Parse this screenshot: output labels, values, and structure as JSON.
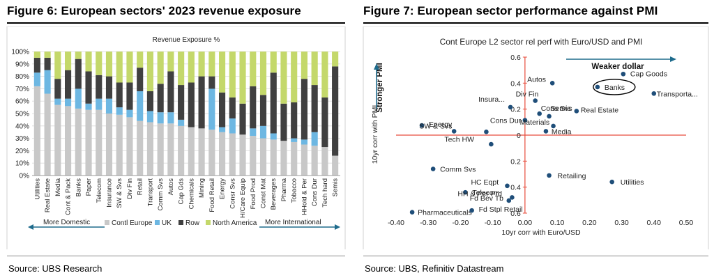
{
  "figure6": {
    "title": "Figure 6: European sectors' 2023 revenue exposure",
    "source": "Source: UBS Research"
  },
  "figure7": {
    "title": "Figure 7: European sector performance against PMI",
    "source": "Source: UBS, Refinitiv Datastream"
  },
  "chart_data": [
    {
      "type": "bar",
      "stacked": true,
      "title": "Revenue Exposure %",
      "xlabel": "",
      "ylabel": "",
      "ylim": [
        0,
        100
      ],
      "yticks": [
        "0%",
        "10%",
        "20%",
        "30%",
        "40%",
        "50%",
        "60%",
        "70%",
        "80%",
        "90%",
        "100%"
      ],
      "grid": true,
      "legend_position": "bottom",
      "annotations": [
        "More Domestic",
        "More International"
      ],
      "categories": [
        "Utilities",
        "Real Estate",
        "Media",
        "Cont & Pack",
        "Banks",
        "Paper",
        "Telecom",
        "Insurance",
        "SW & Svs",
        "Div Fin",
        "Retail",
        "Transport",
        "Comm Svs",
        "Autos",
        "Cap Gds",
        "Chemicals",
        "Mining",
        "Food Retail",
        "Energy",
        "Consr Svs",
        "H/Care Equip",
        "Food Prod",
        "Const Mat",
        "Beverages",
        "Pharma",
        "Tobacco",
        "HHold & Per",
        "Cons Dur",
        "Tech hard",
        "Semis"
      ],
      "series": [
        {
          "name": "Contl Europe",
          "color": "#c8c8c8",
          "values": [
            72,
            66,
            57,
            56,
            54,
            53,
            53,
            50,
            49,
            47,
            44,
            43,
            42,
            42,
            40,
            39,
            38,
            37,
            35,
            34,
            33,
            32,
            30,
            29,
            28,
            27,
            25,
            24,
            23,
            16
          ]
        },
        {
          "name": "UK",
          "color": "#6db7e2",
          "values": [
            11,
            19,
            5,
            6,
            16,
            5,
            9,
            12,
            6,
            6,
            24,
            9,
            9,
            9,
            5,
            0,
            0,
            33,
            4,
            12,
            0,
            6,
            10,
            5,
            0,
            3,
            4,
            11,
            0,
            0
          ]
        },
        {
          "name": "Row",
          "color": "#404040",
          "values": [
            12,
            10,
            16,
            23,
            24,
            26,
            19,
            18,
            20,
            22,
            19,
            16,
            23,
            33,
            28,
            36,
            42,
            10,
            28,
            17,
            25,
            34,
            25,
            49,
            30,
            29,
            49,
            38,
            40,
            72
          ]
        },
        {
          "name": "North America",
          "color": "#c4d86b",
          "values": [
            5,
            5,
            22,
            15,
            6,
            16,
            19,
            20,
            25,
            25,
            13,
            32,
            26,
            16,
            27,
            25,
            20,
            20,
            33,
            37,
            42,
            28,
            35,
            17,
            42,
            41,
            22,
            27,
            37,
            12
          ]
        }
      ]
    },
    {
      "type": "scatter",
      "title": "Cont Europe L2 sector rel perf with  Euro/USD and PMI",
      "xlabel": "10yr corr with Euro/USD",
      "ylabel": "10yr corr with PMI",
      "ylabel_emphasis": "Stronger PMI",
      "x_emphasis": "Weaker dollar",
      "xlim": [
        -0.4,
        0.5
      ],
      "ylim": [
        -0.6,
        0.6
      ],
      "xticks": [
        "-0.40",
        "-0.30",
        "-0.20",
        "-0.10",
        "0.00",
        "0.10",
        "0.20",
        "0.30",
        "0.40",
        "0.50"
      ],
      "yticks": [
        "0.6",
        "0.4",
        "0.2",
        "0",
        "0.2",
        "0.4",
        "0.6"
      ],
      "point_color": "#1f4e79",
      "highlight": "Banks",
      "points": [
        {
          "label": "Autos",
          "x": 0.085,
          "y": 0.4
        },
        {
          "label": "Cap Goods",
          "x": 0.305,
          "y": 0.47
        },
        {
          "label": "Banks",
          "x": 0.225,
          "y": 0.37
        },
        {
          "label": "Transporta...",
          "x": 0.4,
          "y": 0.32
        },
        {
          "label": "Div Fin",
          "x": 0.032,
          "y": 0.265
        },
        {
          "label": "Insura...",
          "x": -0.045,
          "y": 0.215
        },
        {
          "label": "Cons Svs",
          "x": 0.045,
          "y": 0.165
        },
        {
          "label": "Semis",
          "x": 0.075,
          "y": 0.145
        },
        {
          "label": "Real Estate",
          "x": 0.16,
          "y": 0.185
        },
        {
          "label": "Cons Dur",
          "x": 0.0,
          "y": 0.115
        },
        {
          "label": "Materials",
          "x": 0.088,
          "y": 0.07
        },
        {
          "label": "Media",
          "x": 0.065,
          "y": 0.03
        },
        {
          "label": "Energy",
          "x": -0.32,
          "y": 0.075
        },
        {
          "label": "SW & Svs",
          "x": -0.22,
          "y": 0.03
        },
        {
          "label": "Tech HW",
          "x": -0.12,
          "y": 0.025
        },
        {
          "label": "Tech HW",
          "x": -0.105,
          "y": -0.07
        },
        {
          "label": "Comm Svs",
          "x": -0.285,
          "y": -0.26
        },
        {
          "label": "HC Eqpt",
          "x": -0.055,
          "y": -0.39
        },
        {
          "label": "Telecom",
          "x": -0.185,
          "y": -0.44
        },
        {
          "label": "Retailing",
          "x": 0.075,
          "y": -0.31
        },
        {
          "label": "Utilities",
          "x": 0.27,
          "y": -0.36
        },
        {
          "label": "HH & Per Prd",
          "x": -0.04,
          "y": -0.695
        },
        {
          "label": "Fd Bev Tb",
          "x": -0.05,
          "y": -0.73
        },
        {
          "label": "Pharmaceuticals",
          "x": -0.35,
          "y": -0.86
        },
        {
          "label": "Fd Stpl Retail",
          "x": -0.165,
          "y": -0.84
        }
      ]
    }
  ]
}
